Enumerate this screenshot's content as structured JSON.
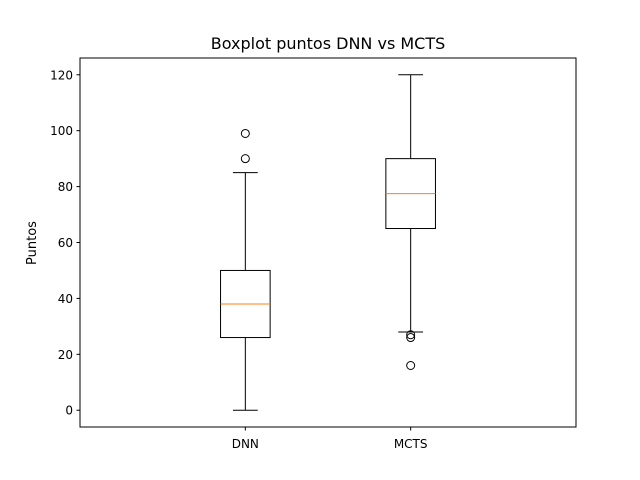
{
  "chart_data": {
    "type": "boxplot",
    "title": "Boxplot puntos DNN vs MCTS",
    "xlabel": "",
    "ylabel": "Puntos",
    "ylim": [
      -6,
      126
    ],
    "yticks": [
      0,
      20,
      40,
      60,
      80,
      100,
      120
    ],
    "grid": false,
    "categories": [
      "DNN",
      "MCTS"
    ],
    "boxes": [
      {
        "category": "DNN",
        "whisker_low": 0,
        "q1": 26,
        "median": 38,
        "q3": 50,
        "whisker_high": 85,
        "outliers": [
          90,
          99
        ]
      },
      {
        "category": "MCTS",
        "whisker_low": 28,
        "q1": 65,
        "median": 77.5,
        "q3": 90,
        "whisker_high": 120,
        "outliers": [
          16,
          26,
          27
        ]
      }
    ],
    "colors": {
      "box": "#000000",
      "median": "#ff7f0e",
      "outlier": "#000000"
    }
  }
}
